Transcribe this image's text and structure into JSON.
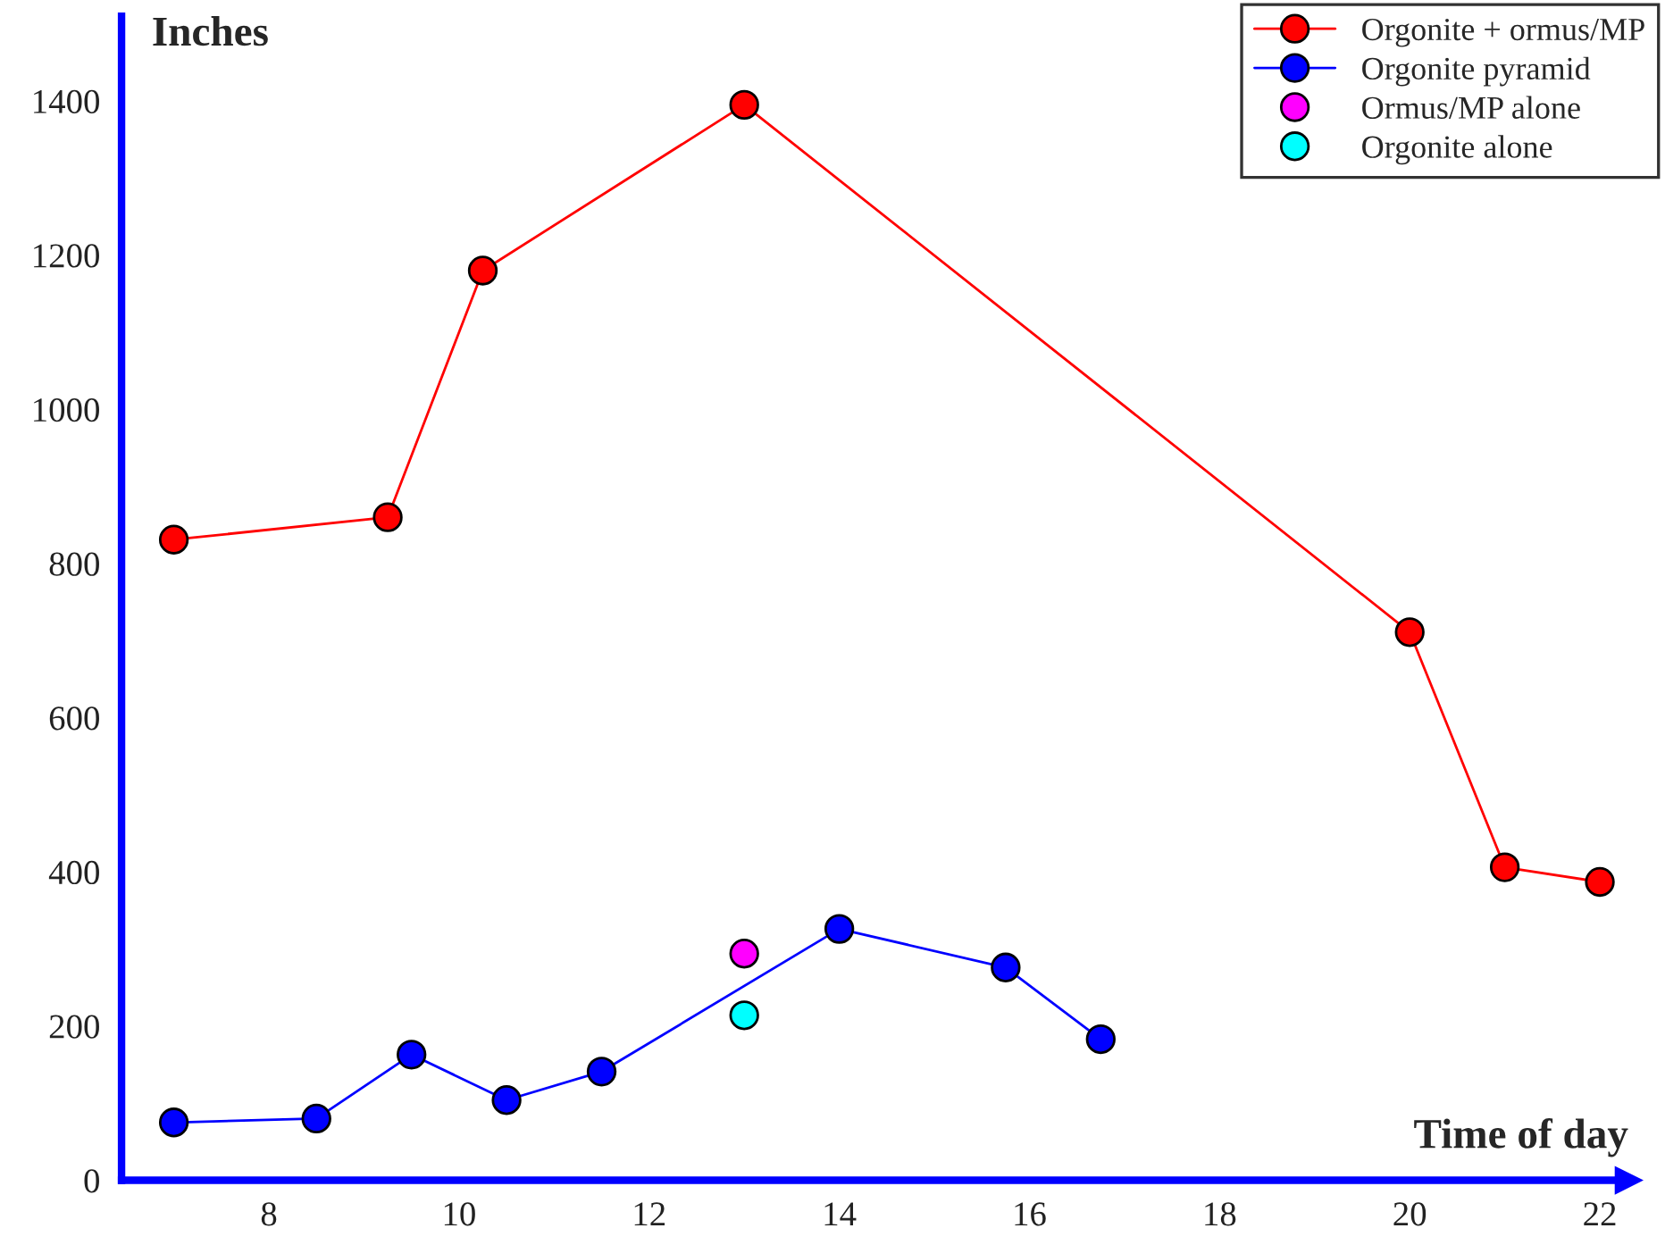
{
  "chart_data": {
    "type": "line",
    "xlabel": "Time of day",
    "ylabel": "Inches",
    "xlim": [
      6.45,
      22.3
    ],
    "ylim": [
      0,
      1510
    ],
    "xticks": [
      8,
      10,
      12,
      14,
      16,
      18,
      20,
      22
    ],
    "yticks": [
      0,
      200,
      400,
      600,
      800,
      1000,
      1200,
      1400
    ],
    "grid": false,
    "legend": "top right",
    "marker": "circle",
    "line_style": "solid",
    "series": [
      {
        "name": "Orgonite + ormus/MP",
        "color": "#ff0000",
        "x": [
          7,
          9.25,
          10.25,
          13,
          20,
          21,
          22
        ],
        "values": [
          831,
          860,
          1180,
          1395,
          711,
          406,
          387
        ]
      },
      {
        "name": "Orgonite pyramid",
        "color": "#0000ff",
        "x": [
          7,
          8.5,
          9.5,
          10.5,
          11.5,
          14,
          15.75,
          16.75
        ],
        "values": [
          75,
          80,
          163,
          104,
          141,
          326,
          276,
          183
        ]
      },
      {
        "name": "Ormus/MP alone",
        "type": "scatter",
        "color": "#ff00ff",
        "x": [
          13
        ],
        "values": [
          294
        ]
      },
      {
        "name": "Orgonite alone",
        "type": "scatter",
        "color": "#00ffff",
        "x": [
          13
        ],
        "values": [
          214
        ]
      }
    ]
  }
}
